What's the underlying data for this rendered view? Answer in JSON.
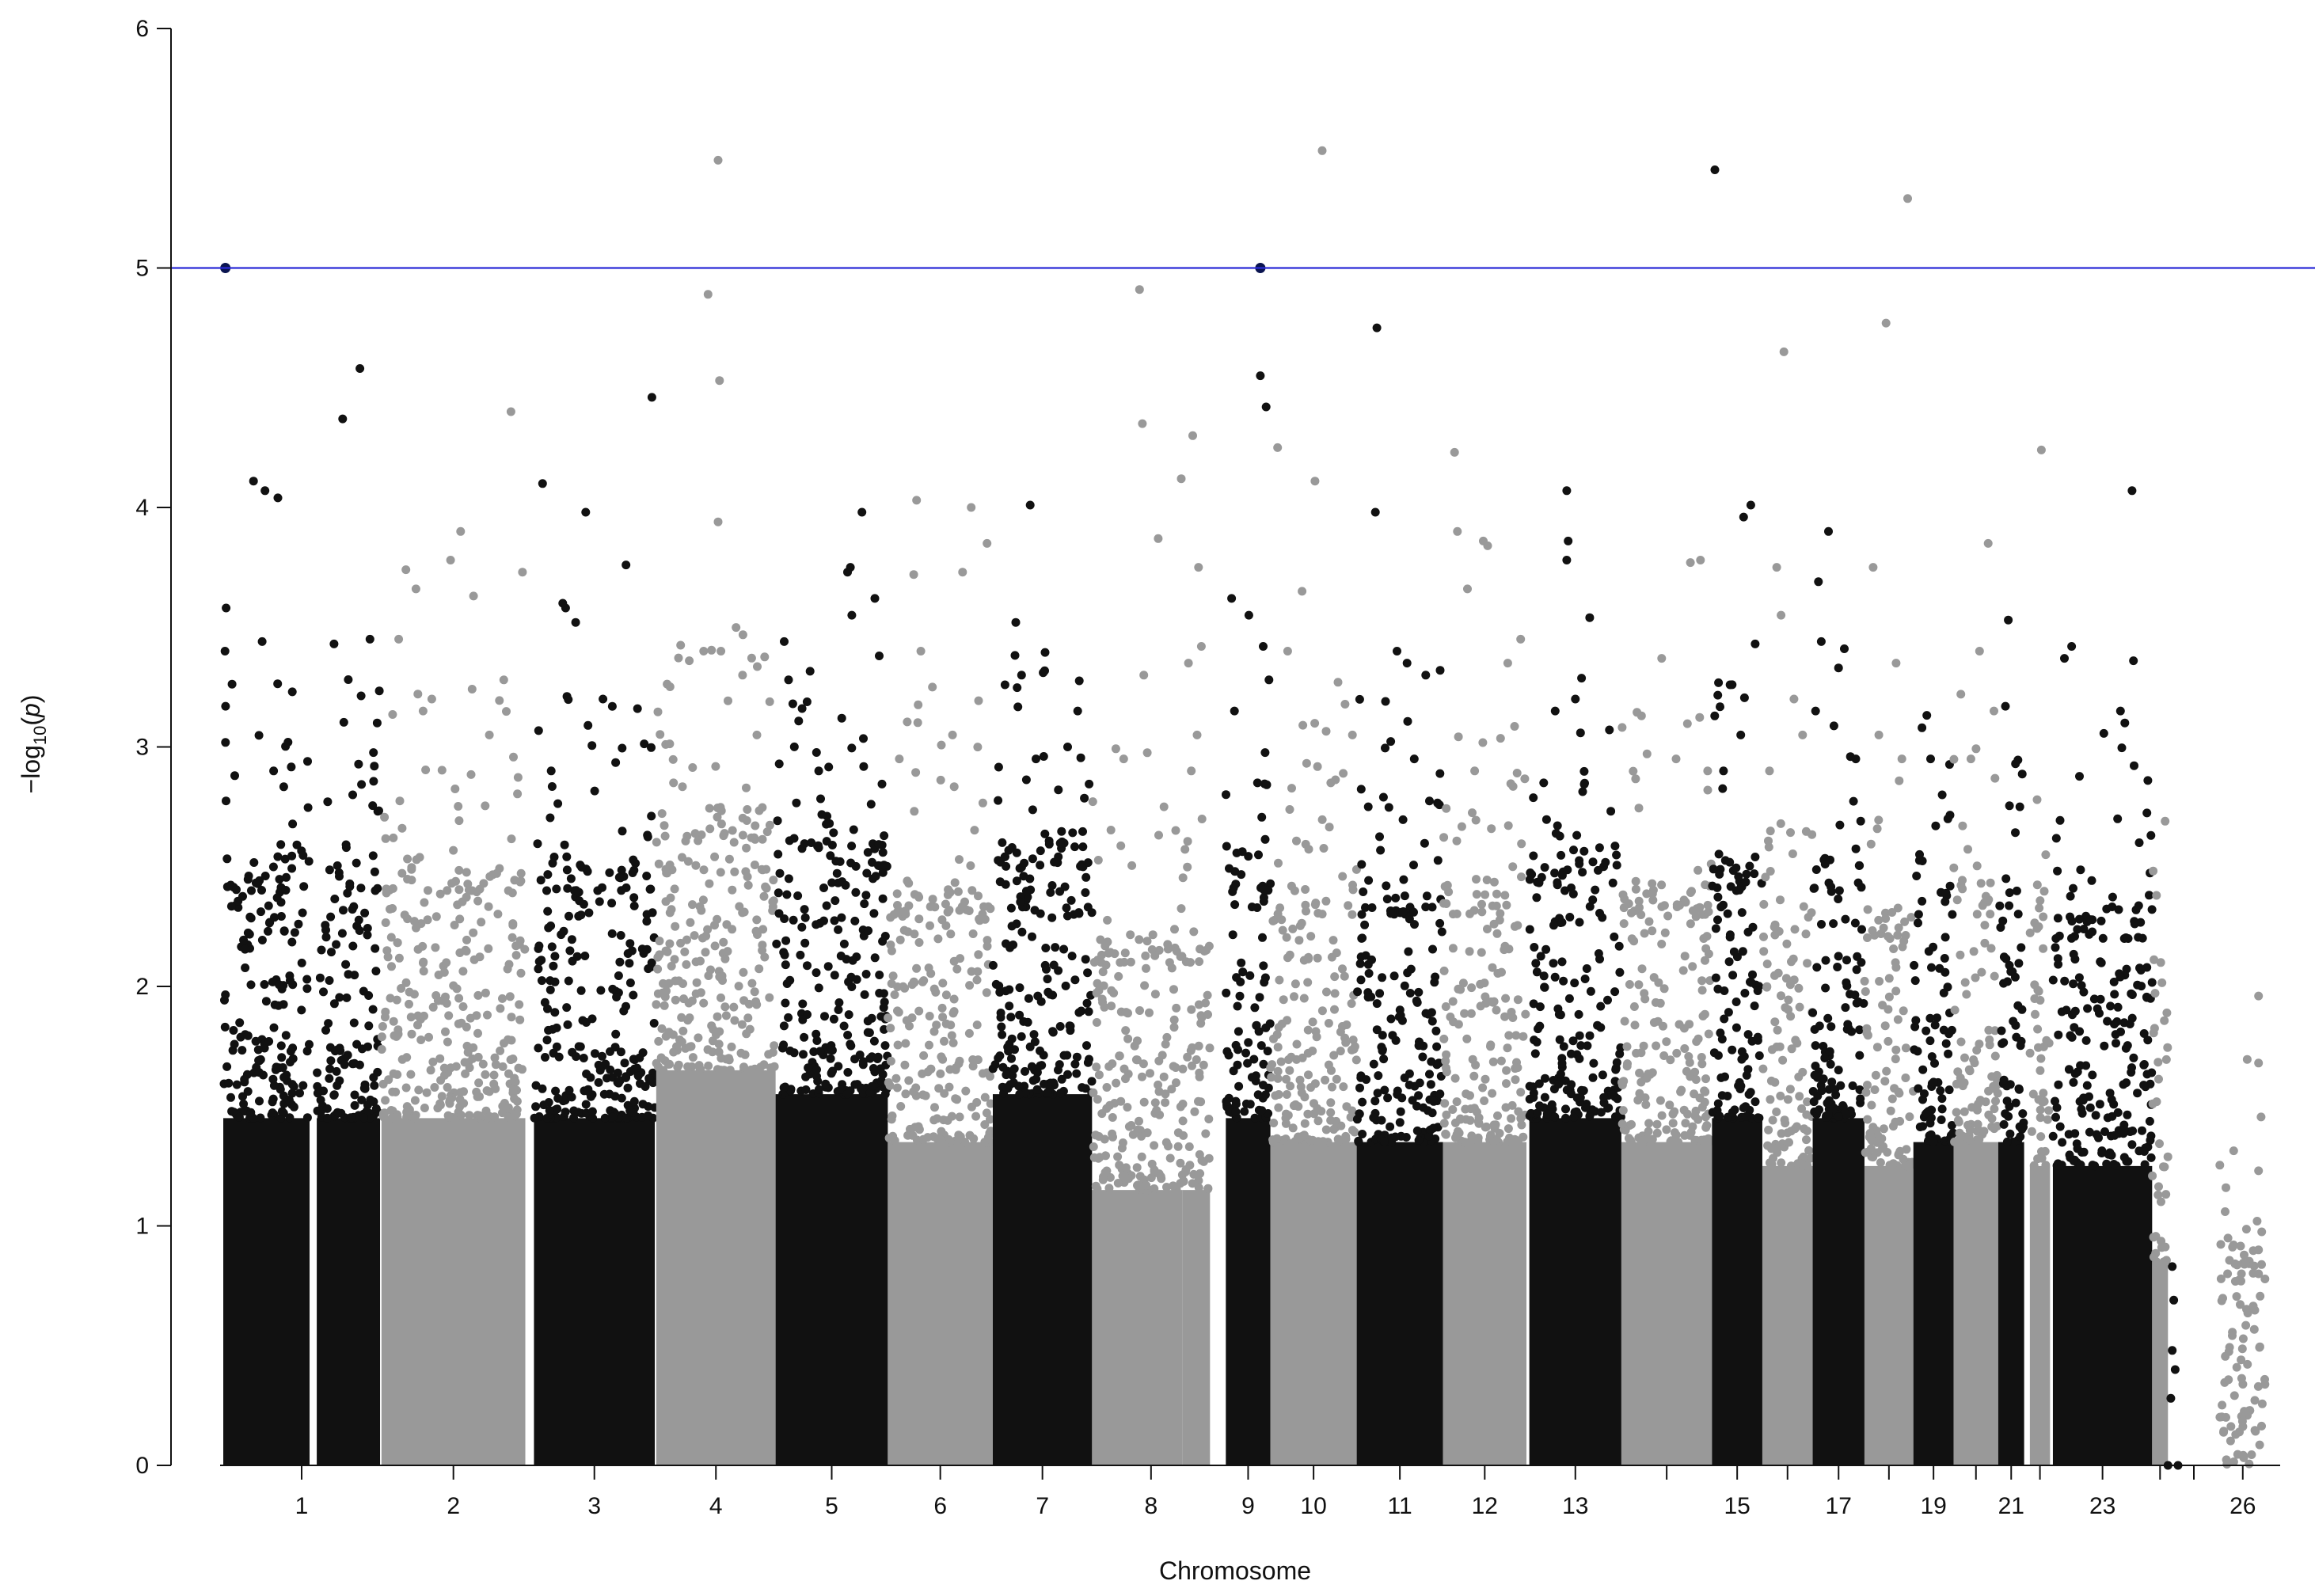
{
  "chart_data": {
    "type": "scatter",
    "subtype": "manhattan",
    "title": "",
    "xlabel": "Chromosome",
    "ylabel": "−log10(p)",
    "ylim": [
      0,
      6
    ],
    "yticks": [
      0,
      1,
      2,
      3,
      4,
      5,
      6
    ],
    "threshold": 5,
    "threshold_color": "#2b2bd6",
    "colors": {
      "odd": "#111111",
      "even": "#999999",
      "highlight": "#0a1450"
    },
    "x_tick_labels": [
      "1",
      "2",
      "3",
      "4",
      "5",
      "6",
      "7",
      "8",
      "9",
      "10",
      "11",
      "12",
      "13",
      "15",
      "17",
      "19",
      "21",
      "23",
      "26"
    ],
    "chromosomes": [
      {
        "chr": 1,
        "start": 0,
        "end": 60,
        "ceiling": 2.0,
        "peaks": [
          [
            1.5,
            5.0
          ],
          [
            2,
            3.58
          ],
          [
            1.2,
            3.4
          ],
          [
            1.6,
            3.17
          ],
          [
            21,
            4.11
          ],
          [
            29,
            4.07
          ],
          [
            38,
            4.04
          ],
          [
            48,
            3.23
          ],
          [
            27,
            3.44
          ],
          [
            45,
            3.02
          ],
          [
            8,
            2.88
          ],
          [
            35,
            2.9
          ]
        ],
        "top_series": [
          [
            1.5,
            5.0
          ]
        ]
      },
      {
        "chr": 1,
        "start": 65,
        "end": 109,
        "ceiling": 2.0,
        "peaks": [
          [
            18,
            4.37
          ],
          [
            30,
            4.58
          ],
          [
            12,
            3.43
          ],
          [
            37,
            3.45
          ],
          [
            42,
            3.1
          ],
          [
            40,
            2.92
          ],
          [
            25,
            2.8
          ]
        ]
      },
      {
        "chr": 2,
        "start": 110,
        "end": 210,
        "ceiling": 2.0,
        "peaks": [
          [
            17,
            3.74
          ],
          [
            48,
            3.78
          ],
          [
            55,
            3.9
          ],
          [
            90,
            4.4
          ],
          [
            98,
            3.73
          ],
          [
            64,
            3.63
          ],
          [
            24,
            3.66
          ],
          [
            12,
            3.45
          ],
          [
            85,
            3.28
          ],
          [
            35,
            3.2
          ],
          [
            75,
            3.05
          ]
        ]
      },
      {
        "chr": 3,
        "start": 216,
        "end": 300,
        "ceiling": 2.0,
        "peaks": [
          [
            6,
            4.1
          ],
          [
            36,
            3.98
          ],
          [
            22,
            3.58
          ],
          [
            64,
            3.76
          ],
          [
            82,
            4.46
          ],
          [
            20,
            3.6
          ],
          [
            29,
            3.52
          ],
          [
            48,
            3.2
          ],
          [
            12,
            2.9
          ],
          [
            72,
            3.16
          ]
        ]
      },
      {
        "chr": 4,
        "start": 301,
        "end": 384,
        "ceiling": 2.2,
        "peaks": [
          [
            43,
            5.45
          ],
          [
            36,
            4.89
          ],
          [
            44,
            4.53
          ],
          [
            43,
            3.94
          ],
          [
            33,
            3.4
          ],
          [
            45,
            3.4
          ],
          [
            23,
            3.36
          ],
          [
            60,
            3.3
          ],
          [
            70,
            3.05
          ],
          [
            12,
            2.85
          ]
        ]
      },
      {
        "chr": 5,
        "start": 384,
        "end": 462,
        "ceiling": 2.1,
        "peaks": [
          [
            6,
            3.44
          ],
          [
            9,
            3.28
          ],
          [
            12,
            3.18
          ],
          [
            60,
            3.98
          ],
          [
            52,
            3.75
          ],
          [
            50,
            3.73
          ],
          [
            53,
            3.55
          ],
          [
            69,
            3.62
          ],
          [
            72,
            3.38
          ],
          [
            46,
            3.12
          ],
          [
            30,
            2.9
          ]
        ]
      },
      {
        "chr": 6,
        "start": 462,
        "end": 535,
        "ceiling": 1.9,
        "peaks": [
          [
            20,
            4.03
          ],
          [
            58,
            4.0
          ],
          [
            52,
            3.73
          ],
          [
            18,
            3.72
          ],
          [
            69,
            3.85
          ],
          [
            23,
            3.4
          ],
          [
            31,
            3.25
          ],
          [
            45,
            3.05
          ],
          [
            8,
            2.95
          ]
        ]
      },
      {
        "chr": 7,
        "start": 535,
        "end": 604,
        "ceiling": 2.1,
        "peaks": [
          [
            26,
            4.01
          ],
          [
            16,
            3.52
          ],
          [
            35,
            3.31
          ],
          [
            20,
            3.3
          ],
          [
            59,
            3.15
          ],
          [
            52,
            3.0
          ],
          [
            30,
            2.95
          ]
        ]
      },
      {
        "chr": 8,
        "start": 604,
        "end": 667,
        "ceiling": 1.7,
        "peaks": [
          [
            33,
            4.91
          ],
          [
            35,
            4.35
          ],
          [
            46,
            3.87
          ],
          [
            62,
            4.12
          ],
          [
            36,
            3.3
          ],
          [
            22,
            2.95
          ],
          [
            50,
            2.75
          ]
        ]
      },
      {
        "chr": 8,
        "start": 667,
        "end": 686,
        "ceiling": 1.7,
        "peaks": [
          [
            7,
            4.3
          ],
          [
            11,
            3.75
          ],
          [
            13,
            3.42
          ],
          [
            4,
            3.35
          ],
          [
            10,
            3.05
          ],
          [
            6,
            2.9
          ]
        ]
      },
      {
        "chr": 9,
        "start": 697,
        "end": 728,
        "ceiling": 2.0,
        "peaks": [
          [
            24,
            5.0
          ],
          [
            24,
            4.55
          ],
          [
            28,
            4.42
          ],
          [
            4,
            3.62
          ],
          [
            16,
            3.55
          ],
          [
            26,
            3.42
          ],
          [
            30,
            3.28
          ],
          [
            6,
            3.15
          ],
          [
            22,
            2.85
          ]
        ],
        "top_series": [
          [
            24,
            5.0
          ]
        ]
      },
      {
        "chr": 10,
        "start": 728,
        "end": 788,
        "ceiling": 1.9,
        "peaks": [
          [
            5,
            4.25
          ],
          [
            22,
            3.65
          ],
          [
            36,
            5.49
          ],
          [
            31,
            4.11
          ],
          [
            47,
            3.27
          ],
          [
            57,
            3.05
          ],
          [
            12,
            3.4
          ],
          [
            42,
            2.85
          ]
        ]
      },
      {
        "chr": 11,
        "start": 788,
        "end": 848,
        "ceiling": 1.9,
        "peaks": [
          [
            14,
            4.75
          ],
          [
            13,
            3.98
          ],
          [
            20,
            3.19
          ],
          [
            28,
            3.4
          ],
          [
            35,
            3.35
          ],
          [
            48,
            3.3
          ],
          [
            58,
            3.32
          ],
          [
            40,
            2.95
          ],
          [
            8,
            2.75
          ]
        ]
      },
      {
        "chr": 12,
        "start": 848,
        "end": 906,
        "ceiling": 1.9,
        "peaks": [
          [
            8,
            4.23
          ],
          [
            17,
            3.66
          ],
          [
            28,
            3.86
          ],
          [
            31,
            3.84
          ],
          [
            10,
            3.9
          ],
          [
            45,
            3.35
          ],
          [
            54,
            3.45
          ],
          [
            22,
            2.9
          ]
        ]
      },
      {
        "chr": 13,
        "start": 908,
        "end": 972,
        "ceiling": 2.0,
        "peaks": [
          [
            26,
            4.07
          ],
          [
            27,
            3.86
          ],
          [
            26,
            3.78
          ],
          [
            42,
            3.54
          ],
          [
            32,
            3.2
          ],
          [
            18,
            3.15
          ],
          [
            10,
            2.85
          ]
        ]
      },
      {
        "chr": 14,
        "start": 972,
        "end": 1035,
        "ceiling": 1.9,
        "peaks": [
          [
            14,
            3.13
          ],
          [
            28,
            3.37
          ],
          [
            48,
            3.77
          ],
          [
            55,
            3.78
          ],
          [
            38,
            2.95
          ],
          [
            60,
            2.9
          ]
        ]
      },
      {
        "chr": 15,
        "start": 1035,
        "end": 1070,
        "ceiling": 2.0,
        "peaks": [
          [
            2,
            5.41
          ],
          [
            22,
            3.96
          ],
          [
            27,
            4.01
          ],
          [
            30,
            3.43
          ],
          [
            14,
            3.26
          ],
          [
            20,
            3.05
          ],
          [
            8,
            2.9
          ]
        ]
      },
      {
        "chr": 16,
        "start": 1070,
        "end": 1105,
        "ceiling": 1.8,
        "peaks": [
          [
            10,
            3.75
          ],
          [
            15,
            4.65
          ],
          [
            13,
            3.55
          ],
          [
            22,
            3.2
          ],
          [
            28,
            3.05
          ],
          [
            5,
            2.9
          ]
        ]
      },
      {
        "chr": 17,
        "start": 1105,
        "end": 1141,
        "ceiling": 2.0,
        "peaks": [
          [
            4,
            3.69
          ],
          [
            11,
            3.9
          ],
          [
            6,
            3.44
          ],
          [
            22,
            3.41
          ],
          [
            18,
            3.33
          ],
          [
            2,
            3.15
          ],
          [
            30,
            2.95
          ]
        ]
      },
      {
        "chr": 18,
        "start": 1141,
        "end": 1175,
        "ceiling": 1.8,
        "peaks": [
          [
            15,
            4.77
          ],
          [
            6,
            3.75
          ],
          [
            30,
            5.29
          ],
          [
            22,
            3.35
          ],
          [
            10,
            3.05
          ],
          [
            26,
            2.95
          ]
        ]
      },
      {
        "chr": 19,
        "start": 1175,
        "end": 1203,
        "ceiling": 1.9,
        "peaks": [
          [
            6,
            3.08
          ],
          [
            20,
            2.8
          ],
          [
            12,
            2.95
          ],
          [
            24,
            2.7
          ]
        ]
      },
      {
        "chr": 20,
        "start": 1203,
        "end": 1234,
        "ceiling": 1.9,
        "peaks": [
          [
            5,
            3.22
          ],
          [
            18,
            3.4
          ],
          [
            24,
            3.85
          ],
          [
            28,
            3.15
          ],
          [
            12,
            2.95
          ]
        ]
      },
      {
        "chr": 21,
        "start": 1234,
        "end": 1252,
        "ceiling": 1.9,
        "peaks": [
          [
            7,
            3.53
          ],
          [
            5,
            3.17
          ],
          [
            12,
            2.93
          ],
          [
            15,
            2.75
          ]
        ]
      },
      {
        "chr": 22,
        "start": 1256,
        "end": 1270,
        "ceiling": 1.8,
        "peaks": [
          [
            8,
            4.24
          ],
          [
            5,
            2.78
          ],
          [
            11,
            2.55
          ]
        ]
      },
      {
        "chr": 23,
        "start": 1272,
        "end": 1341,
        "ceiling": 1.8,
        "peaks": [
          [
            8,
            3.37
          ],
          [
            13,
            3.42
          ],
          [
            55,
            4.07
          ],
          [
            47,
            3.15
          ],
          [
            50,
            3.1
          ],
          [
            45,
            2.7
          ],
          [
            56,
            3.36
          ],
          [
            66,
            2.86
          ],
          [
            60,
            2.6
          ]
        ]
      },
      {
        "chr": 24,
        "start": 1341,
        "end": 1352,
        "ceiling": 1.4,
        "peaks": [
          [
            3,
            2.38
          ],
          [
            9,
            2.69
          ],
          [
            6,
            2.1
          ]
        ]
      },
      {
        "chr": 25,
        "start": 1352,
        "end": 1388,
        "ceiling": 0.0,
        "sparse": [
          [
            0,
            0.0
          ],
          [
            3,
            0.83
          ],
          [
            3,
            0.48
          ],
          [
            5,
            0.4
          ],
          [
            4,
            0.69
          ],
          [
            2,
            0.28
          ],
          [
            7,
            0.0
          ]
        ]
      },
      {
        "chr": 26,
        "start": 1388,
        "end": 1420,
        "ceiling": 0.4,
        "peaks": [
          [
            27,
            1.96
          ],
          [
            27,
            1.68
          ],
          [
            27,
            1.23
          ],
          [
            26,
            1.02
          ],
          [
            27,
            0.9
          ],
          [
            27,
            0.8
          ]
        ]
      }
    ],
    "genome_span": [
      0,
      1430
    ]
  }
}
